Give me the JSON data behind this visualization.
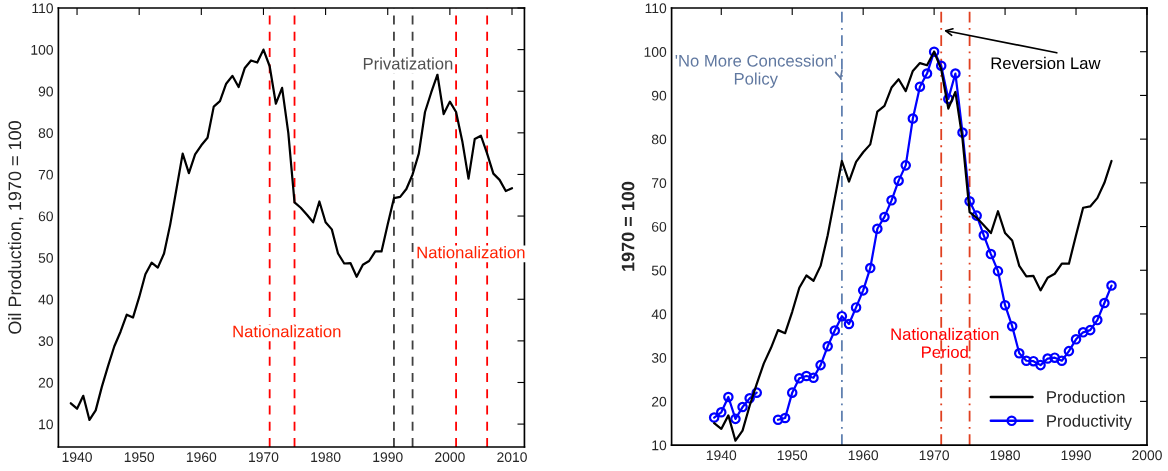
{
  "chart_data": [
    {
      "type": "line",
      "ylabel": "Oil Production, 1970 = 100",
      "x": [
        1939,
        1940,
        1941,
        1942,
        1943,
        1944,
        1945,
        1946,
        1947,
        1948,
        1949,
        1950,
        1951,
        1952,
        1953,
        1954,
        1955,
        1956,
        1957,
        1958,
        1959,
        1960,
        1961,
        1962,
        1963,
        1964,
        1965,
        1966,
        1967,
        1968,
        1969,
        1970,
        1971,
        1972,
        1973,
        1974,
        1975,
        1976,
        1977,
        1978,
        1979,
        1980,
        1981,
        1982,
        1983,
        1984,
        1985,
        1986,
        1987,
        1988,
        1989,
        1990,
        1991,
        1992,
        1993,
        1994,
        1995,
        1996,
        1997,
        1998,
        1999,
        2000,
        2001,
        2002,
        2003,
        2004,
        2005,
        2006,
        2007,
        2008,
        2009,
        2010
      ],
      "series": [
        {
          "color": "#000000",
          "values": [
            15,
            13.7,
            16.8,
            11,
            13.3,
            19,
            24,
            28.7,
            32.2,
            36.3,
            35.6,
            40.5,
            46,
            48.8,
            47.6,
            51,
            58,
            66.5,
            75,
            70.3,
            74.8,
            77,
            78.8,
            86.3,
            87.6,
            91.8,
            93.7,
            91,
            95.6,
            97.4,
            96.9,
            100,
            96,
            87,
            90.8,
            80,
            63.3,
            62,
            60.3,
            58.5,
            63.5,
            58.5,
            56.8,
            51,
            48.6,
            48.7,
            45.4,
            48.3,
            49.2,
            51.5,
            51.5,
            58,
            64.3,
            64.6,
            66.5,
            70,
            75,
            85,
            89.7,
            94,
            84.5,
            87.5,
            85,
            78,
            69,
            78.5,
            79.3,
            75,
            70.2,
            68.7,
            66,
            66.7
          ]
        }
      ],
      "xlim": [
        1937,
        2012
      ],
      "xticks": [
        1940,
        1950,
        1960,
        1970,
        1980,
        1990,
        2000,
        2010
      ],
      "ylim": [
        4.5,
        110
      ],
      "yticks": [
        10,
        20,
        30,
        40,
        50,
        60,
        70,
        80,
        90,
        100,
        110
      ],
      "grid": false,
      "legend": false,
      "marker": "none",
      "line_style": "solid",
      "ref_lines": [
        {
          "axis": "x",
          "value": 1971,
          "color": "#ff0000",
          "line_style": "dashed"
        },
        {
          "axis": "x",
          "value": 1975,
          "color": "#ff0000",
          "line_style": "dashed"
        },
        {
          "axis": "x",
          "value": 1991,
          "color": "#404040",
          "line_style": "dashed"
        },
        {
          "axis": "x",
          "value": 1994,
          "color": "#404040",
          "line_style": "dashed"
        },
        {
          "axis": "x",
          "value": 2001,
          "color": "#ff0000",
          "line_style": "dashed"
        },
        {
          "axis": "x",
          "value": 2006,
          "color": "#ff0000",
          "line_style": "dashed"
        }
      ],
      "annotations": [
        "Nationalization",
        "Privatization",
        "Nationalization"
      ]
    },
    {
      "type": "line",
      "ylabel": "1970 = 100",
      "series": [
        {
          "name": "Production",
          "color": "#000000",
          "marker": "none",
          "x": [
            1939,
            1940,
            1941,
            1942,
            1943,
            1944,
            1945,
            1946,
            1947,
            1948,
            1949,
            1950,
            1951,
            1952,
            1953,
            1954,
            1955,
            1956,
            1957,
            1958,
            1959,
            1960,
            1961,
            1962,
            1963,
            1964,
            1965,
            1966,
            1967,
            1968,
            1969,
            1970,
            1971,
            1972,
            1973,
            1974,
            1975,
            1976,
            1977,
            1978,
            1979,
            1980,
            1981,
            1982,
            1983,
            1984,
            1985,
            1986,
            1987,
            1988,
            1989,
            1990,
            1991,
            1992,
            1993,
            1994,
            1995
          ],
          "values": [
            15,
            13.7,
            16.8,
            11,
            13.3,
            19,
            24,
            28.7,
            32.2,
            36.3,
            35.6,
            40.5,
            46,
            48.8,
            47.6,
            51,
            58,
            66.5,
            75,
            70.3,
            74.8,
            77,
            78.8,
            86.3,
            87.6,
            91.8,
            93.7,
            91,
            95.6,
            97.4,
            96.9,
            100,
            96,
            87,
            90.8,
            80,
            63.3,
            62,
            60.3,
            58.5,
            63.5,
            58.5,
            56.8,
            51,
            48.6,
            48.7,
            45.4,
            48.3,
            49.2,
            51.5,
            51.5,
            58,
            64.3,
            64.6,
            66.5,
            70,
            75
          ]
        },
        {
          "name": "Productivity",
          "color": "#0000ff",
          "marker": "circle",
          "x": [
            1939,
            1940,
            1941,
            1942,
            1943,
            1944,
            1945,
            1946,
            1947,
            1948,
            1949,
            1950,
            1951,
            1952,
            1953,
            1954,
            1955,
            1956,
            1957,
            1958,
            1959,
            1960,
            1961,
            1962,
            1963,
            1964,
            1965,
            1966,
            1967,
            1968,
            1969,
            1970,
            1971,
            1972,
            1973,
            1974,
            1975,
            1976,
            1977,
            1978,
            1979,
            1980,
            1981,
            1982,
            1983,
            1984,
            1985,
            1986,
            1987,
            1988,
            1989,
            1990,
            1991,
            1992,
            1993,
            1994,
            1995
          ],
          "values": [
            16.3,
            17.5,
            21,
            16,
            18.7,
            20.7,
            22,
            null,
            null,
            15.8,
            16.2,
            22,
            25.3,
            25.8,
            25.4,
            28.3,
            32.6,
            36.2,
            39.5,
            37.7,
            41.5,
            45.4,
            50.5,
            59.5,
            62.2,
            66,
            70.5,
            74,
            84.7,
            92,
            95,
            100,
            96.8,
            89.2,
            95,
            81.5,
            65.8,
            62.5,
            58,
            53.7,
            49.8,
            42,
            37.2,
            31,
            29.3,
            29.2,
            28.3,
            29.8,
            30,
            29.3,
            31.5,
            34.2,
            35.8,
            36.3,
            38.6,
            42.5,
            46.5
          ]
        }
      ],
      "xlim": [
        1933,
        2000
      ],
      "xticks": [
        1940,
        1950,
        1960,
        1970,
        1980,
        1990,
        2000
      ],
      "ylim": [
        10,
        110
      ],
      "yticks": [
        10,
        20,
        30,
        40,
        50,
        60,
        70,
        80,
        90,
        100,
        110
      ],
      "grid": false,
      "legend": "bottom right",
      "line_style": "solid",
      "ref_lines": [
        {
          "axis": "x",
          "value": 1957,
          "color": "#6080b0",
          "line_style": "dashdot"
        },
        {
          "axis": "x",
          "value": 1971,
          "color": "#e04020",
          "line_style": "dashdot"
        },
        {
          "axis": "x",
          "value": 1975,
          "color": "#e04020",
          "line_style": "dashdot"
        }
      ],
      "annotations": [
        {
          "text": "'No More Concession'\nPolicy",
          "x": 1957,
          "y": 93
        },
        {
          "text": "Reversion Law",
          "x": 1971,
          "y": 105
        },
        {
          "text": "Nationalization\nPeriod",
          "x": 1971.5,
          "y": 33
        }
      ]
    }
  ]
}
